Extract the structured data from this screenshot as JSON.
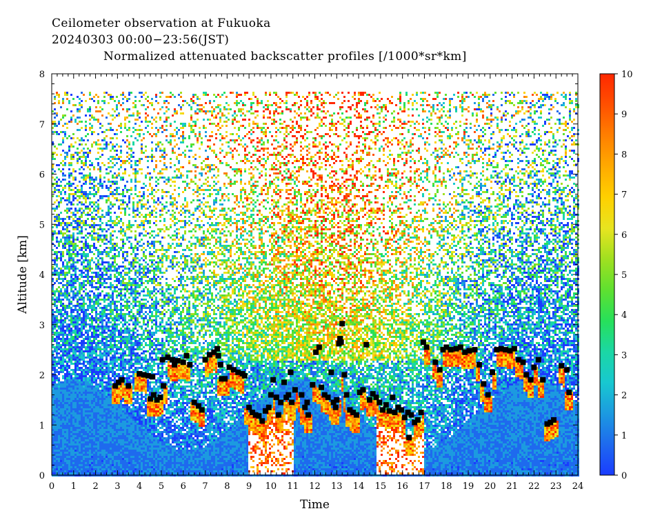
{
  "header": {
    "line1": "Ceilometer observation at Fukuoka",
    "line2": "20240303  00:00−23:56(JST)",
    "line3": "Normalized attenuated backscatter profiles [/1000*sr*km]"
  },
  "chart_data": {
    "type": "heatmap",
    "xlabel": "Time",
    "ylabel": "Altitude [km]",
    "xlim": [
      0,
      24
    ],
    "ylim": [
      0,
      8
    ],
    "x_ticks": [
      0,
      1,
      2,
      3,
      4,
      5,
      6,
      7,
      8,
      9,
      10,
      11,
      12,
      13,
      14,
      15,
      16,
      17,
      18,
      19,
      20,
      21,
      22,
      23,
      24
    ],
    "y_ticks": [
      0,
      1,
      2,
      3,
      4,
      5,
      6,
      7,
      8
    ],
    "data_top_km": 7.65,
    "colorbar": {
      "range": [
        0,
        10
      ],
      "ticks": [
        0,
        1,
        2,
        3,
        4,
        5,
        6,
        7,
        8,
        9,
        10
      ],
      "colors": [
        "#1a3cff",
        "#1e6aee",
        "#1c9ae0",
        "#18c8d0",
        "#1bd7a4",
        "#27e05a",
        "#5fe030",
        "#a0e020",
        "#e8e420",
        "#ffd000",
        "#ffaa00",
        "#ff7f00",
        "#ff5000",
        "#ff2800"
      ]
    },
    "cloud_base_series": {
      "name": "",
      "marker": "square",
      "color": "#000000",
      "points": [
        [
          2.9,
          1.78
        ],
        [
          3.05,
          1.85
        ],
        [
          3.2,
          1.9
        ],
        [
          3.5,
          1.78
        ],
        [
          4.0,
          2.02
        ],
        [
          4.2,
          2.0
        ],
        [
          4.4,
          1.98
        ],
        [
          4.6,
          1.96
        ],
        [
          4.5,
          1.52
        ],
        [
          4.65,
          1.6
        ],
        [
          4.8,
          1.5
        ],
        [
          4.95,
          1.55
        ],
        [
          5.1,
          1.78
        ],
        [
          5.05,
          2.3
        ],
        [
          5.3,
          2.35
        ],
        [
          5.5,
          2.3
        ],
        [
          5.6,
          2.2
        ],
        [
          5.75,
          2.28
        ],
        [
          6.0,
          2.25
        ],
        [
          6.15,
          2.38
        ],
        [
          6.3,
          2.2
        ],
        [
          6.5,
          1.45
        ],
        [
          6.7,
          1.38
        ],
        [
          6.85,
          1.3
        ],
        [
          7.0,
          2.3
        ],
        [
          7.2,
          2.4
        ],
        [
          7.4,
          2.45
        ],
        [
          7.55,
          2.52
        ],
        [
          7.6,
          2.38
        ],
        [
          7.7,
          2.2
        ],
        [
          7.75,
          1.92
        ],
        [
          7.9,
          1.92
        ],
        [
          8.1,
          2.15
        ],
        [
          8.3,
          2.1
        ],
        [
          8.5,
          2.05
        ],
        [
          8.7,
          2.02
        ],
        [
          8.8,
          1.98
        ],
        [
          9.0,
          1.35
        ],
        [
          9.15,
          1.25
        ],
        [
          9.3,
          1.2
        ],
        [
          9.45,
          1.18
        ],
        [
          9.6,
          1.08
        ],
        [
          9.75,
          1.28
        ],
        [
          9.9,
          1.35
        ],
        [
          10.0,
          1.6
        ],
        [
          10.1,
          1.9
        ],
        [
          10.25,
          1.55
        ],
        [
          10.35,
          1.2
        ],
        [
          10.45,
          1.45
        ],
        [
          10.6,
          1.85
        ],
        [
          10.7,
          1.55
        ],
        [
          10.8,
          1.6
        ],
        [
          10.95,
          1.45
        ],
        [
          10.9,
          2.05
        ],
        [
          11.1,
          1.7
        ],
        [
          11.4,
          1.6
        ],
        [
          11.55,
          1.35
        ],
        [
          11.7,
          1.2
        ],
        [
          11.65,
          1.45
        ],
        [
          11.9,
          1.8
        ],
        [
          12.05,
          2.45
        ],
        [
          12.2,
          2.55
        ],
        [
          12.3,
          1.75
        ],
        [
          12.45,
          1.6
        ],
        [
          12.6,
          1.55
        ],
        [
          12.75,
          2.05
        ],
        [
          12.85,
          1.45
        ],
        [
          12.95,
          1.35
        ],
        [
          13.0,
          1.5
        ],
        [
          13.1,
          2.62
        ],
        [
          13.15,
          2.72
        ],
        [
          13.2,
          2.65
        ],
        [
          13.25,
          3.02
        ],
        [
          13.35,
          2.0
        ],
        [
          13.45,
          1.6
        ],
        [
          13.6,
          1.3
        ],
        [
          13.75,
          1.25
        ],
        [
          13.9,
          1.2
        ],
        [
          14.05,
          1.65
        ],
        [
          14.2,
          1.7
        ],
        [
          14.35,
          2.6
        ],
        [
          14.5,
          1.5
        ],
        [
          14.65,
          1.62
        ],
        [
          14.8,
          1.55
        ],
        [
          14.95,
          1.45
        ],
        [
          15.1,
          1.3
        ],
        [
          15.25,
          1.4
        ],
        [
          15.4,
          1.28
        ],
        [
          15.55,
          1.55
        ],
        [
          15.65,
          1.25
        ],
        [
          15.8,
          1.35
        ],
        [
          15.95,
          1.3
        ],
        [
          16.1,
          1.15
        ],
        [
          16.25,
          1.25
        ],
        [
          16.4,
          1.2
        ],
        [
          16.55,
          1.05
        ],
        [
          16.7,
          1.1
        ],
        [
          16.85,
          1.25
        ],
        [
          16.3,
          0.75
        ],
        [
          16.95,
          2.65
        ],
        [
          17.1,
          2.55
        ],
        [
          17.5,
          2.25
        ],
        [
          17.7,
          2.1
        ],
        [
          17.85,
          2.5
        ],
        [
          18.0,
          2.55
        ],
        [
          18.2,
          2.5
        ],
        [
          18.45,
          2.52
        ],
        [
          18.65,
          2.55
        ],
        [
          18.85,
          2.45
        ],
        [
          19.05,
          2.48
        ],
        [
          19.3,
          2.5
        ],
        [
          19.5,
          2.2
        ],
        [
          19.7,
          1.82
        ],
        [
          19.9,
          1.6
        ],
        [
          20.1,
          2.05
        ],
        [
          20.3,
          2.5
        ],
        [
          20.5,
          2.52
        ],
        [
          20.7,
          2.5
        ],
        [
          20.9,
          2.48
        ],
        [
          21.1,
          2.52
        ],
        [
          21.3,
          2.3
        ],
        [
          21.5,
          2.25
        ],
        [
          21.65,
          2.0
        ],
        [
          21.85,
          1.9
        ],
        [
          22.0,
          2.15
        ],
        [
          22.2,
          2.3
        ],
        [
          22.4,
          1.9
        ],
        [
          22.6,
          1.02
        ],
        [
          22.75,
          1.05
        ],
        [
          22.9,
          1.1
        ],
        [
          23.25,
          2.18
        ],
        [
          23.5,
          2.1
        ],
        [
          23.6,
          1.65
        ]
      ]
    }
  }
}
